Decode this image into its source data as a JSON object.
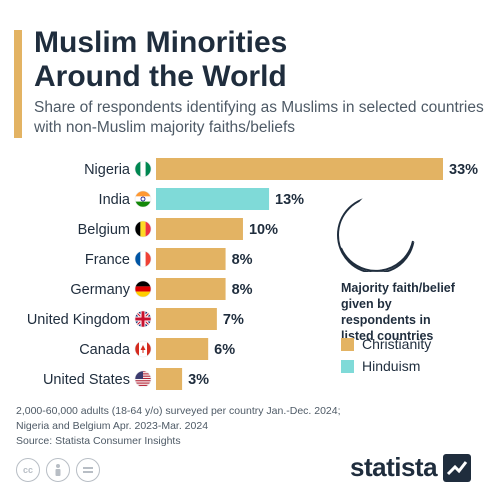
{
  "header": {
    "title_line1": "Muslim Minorities",
    "title_line2": "Around the World",
    "subtitle": "Share of respondents identifying as Muslims in selected countries with non-Muslim majority faiths/beliefs"
  },
  "chart_data": {
    "type": "bar",
    "orientation": "horizontal",
    "categories": [
      "Nigeria",
      "India",
      "Belgium",
      "France",
      "Germany",
      "United Kingdom",
      "Canada",
      "United States"
    ],
    "values": [
      33,
      13,
      10,
      8,
      8,
      7,
      6,
      3
    ],
    "value_labels": [
      "33%",
      "13%",
      "10%",
      "8%",
      "8%",
      "7%",
      "6%",
      "3%"
    ],
    "majority_faith": [
      "Christianity",
      "Hinduism",
      "Christianity",
      "Christianity",
      "Christianity",
      "Christianity",
      "Christianity",
      "Christianity"
    ],
    "unit": "%",
    "xlim": [
      0,
      33
    ],
    "grid": false
  },
  "flags": [
    "nigeria-flag-icon",
    "india-flag-icon",
    "belgium-flag-icon",
    "france-flag-icon",
    "germany-flag-icon",
    "uk-flag-icon",
    "canada-flag-icon",
    "us-flag-icon"
  ],
  "legend": {
    "title": "Majority faith/belief given by respondents in listed countries",
    "placement": "right",
    "items": [
      {
        "label": "Christianity",
        "color": "#e3b363"
      },
      {
        "label": "Hinduism",
        "color": "#7fdad8"
      }
    ]
  },
  "colors": {
    "Christianity": "#e3b363",
    "Hinduism": "#7fdad8",
    "accent": "#e3b363",
    "text": "#1f2d3d"
  },
  "footer": {
    "note_line1": "2,000-60,000 adults (18-64 y/o) surveyed per country Jan.-Dec. 2024;",
    "note_line2": "Nigeria and Belgium Apr. 2023-Mar. 2024",
    "source": "Source: Statista Consumer Insights",
    "license_icons": [
      "cc-icon",
      "by-icon",
      "nd-icon"
    ],
    "brand": "statista"
  }
}
